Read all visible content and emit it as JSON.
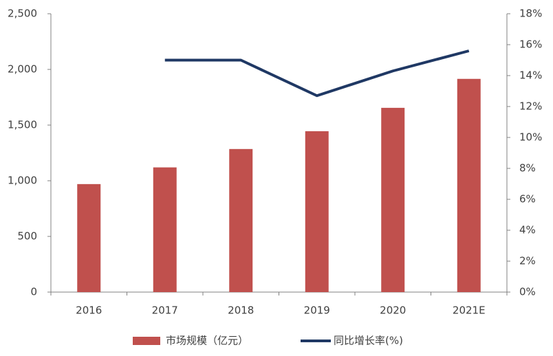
{
  "chart_data": {
    "type": "bar_line",
    "categories": [
      "2016",
      "2017",
      "2018",
      "2019",
      "2020",
      "2021E"
    ],
    "series": [
      {
        "name": "市场规模（亿元）",
        "type": "bar",
        "color": "#c0504d",
        "values": [
          970,
          1120,
          1285,
          1445,
          1655,
          1915
        ]
      },
      {
        "name": "同比增长率(%)",
        "type": "line",
        "axis": "y2",
        "color": "#1f3864",
        "values": [
          null,
          15.0,
          15.0,
          12.7,
          14.3,
          15.6
        ]
      }
    ],
    "ylim": [
      0,
      2500
    ],
    "yticks": [
      0,
      500,
      {
        "value": 1000,
        "label": "1,000"
      },
      {
        "value": 1500,
        "label": "1,500"
      },
      {
        "value": 2000,
        "label": "2,000"
      },
      {
        "value": 2500,
        "label": "2,500"
      }
    ],
    "y2lim": [
      0,
      18
    ],
    "y2ticks": [
      {
        "value": 0,
        "label": "0%"
      },
      {
        "value": 2,
        "label": "2%"
      },
      {
        "value": 4,
        "label": "4%"
      },
      {
        "value": 6,
        "label": "6%"
      },
      {
        "value": 8,
        "label": "8%"
      },
      {
        "value": 10,
        "label": "10%"
      },
      {
        "value": 12,
        "label": "12%"
      },
      {
        "value": 14,
        "label": "14%"
      },
      {
        "value": 16,
        "label": "16%"
      },
      {
        "value": 18,
        "label": "18%"
      }
    ],
    "grid": false,
    "legend": "bottom"
  }
}
